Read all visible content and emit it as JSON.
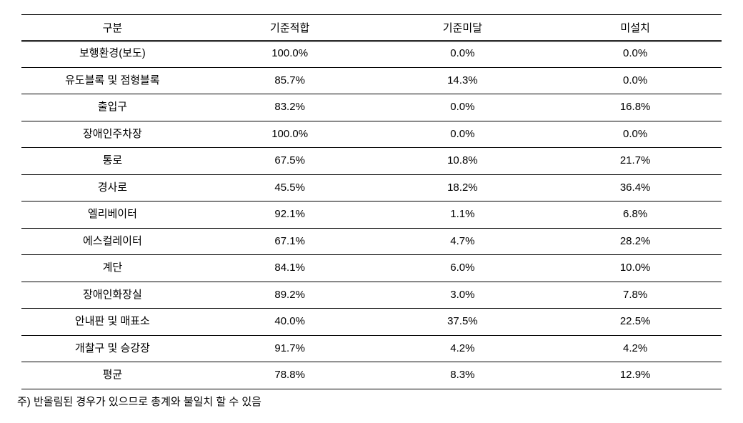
{
  "table": {
    "columns": [
      "구분",
      "기준적합",
      "기준미달",
      "미설치"
    ],
    "rows": [
      [
        "보행환경(보도)",
        "100.0%",
        "0.0%",
        "0.0%"
      ],
      [
        "유도블록 및 점형블록",
        "85.7%",
        "14.3%",
        "0.0%"
      ],
      [
        "출입구",
        "83.2%",
        "0.0%",
        "16.8%"
      ],
      [
        "장애인주차장",
        "100.0%",
        "0.0%",
        "0.0%"
      ],
      [
        "통로",
        "67.5%",
        "10.8%",
        "21.7%"
      ],
      [
        "경사로",
        "45.5%",
        "18.2%",
        "36.4%"
      ],
      [
        "엘리베이터",
        "92.1%",
        "1.1%",
        "6.8%"
      ],
      [
        "에스컬레이터",
        "67.1%",
        "4.7%",
        "28.2%"
      ],
      [
        "계단",
        "84.1%",
        "6.0%",
        "10.0%"
      ],
      [
        "장애인화장실",
        "89.2%",
        "3.0%",
        "7.8%"
      ],
      [
        "안내판 및 매표소",
        "40.0%",
        "37.5%",
        "22.5%"
      ],
      [
        "개찰구 및 승강장",
        "91.7%",
        "4.2%",
        "4.2%"
      ],
      [
        "평균",
        "78.8%",
        "8.3%",
        "12.9%"
      ]
    ]
  },
  "footnote": "주) 반올림된 경우가 있으므로 총계와 불일치 할 수 있음",
  "style": {
    "background_color": "#ffffff",
    "text_color": "#000000",
    "border_color": "#000000",
    "font_size_pt": 12,
    "column_align": [
      "center",
      "center",
      "center",
      "center"
    ]
  }
}
